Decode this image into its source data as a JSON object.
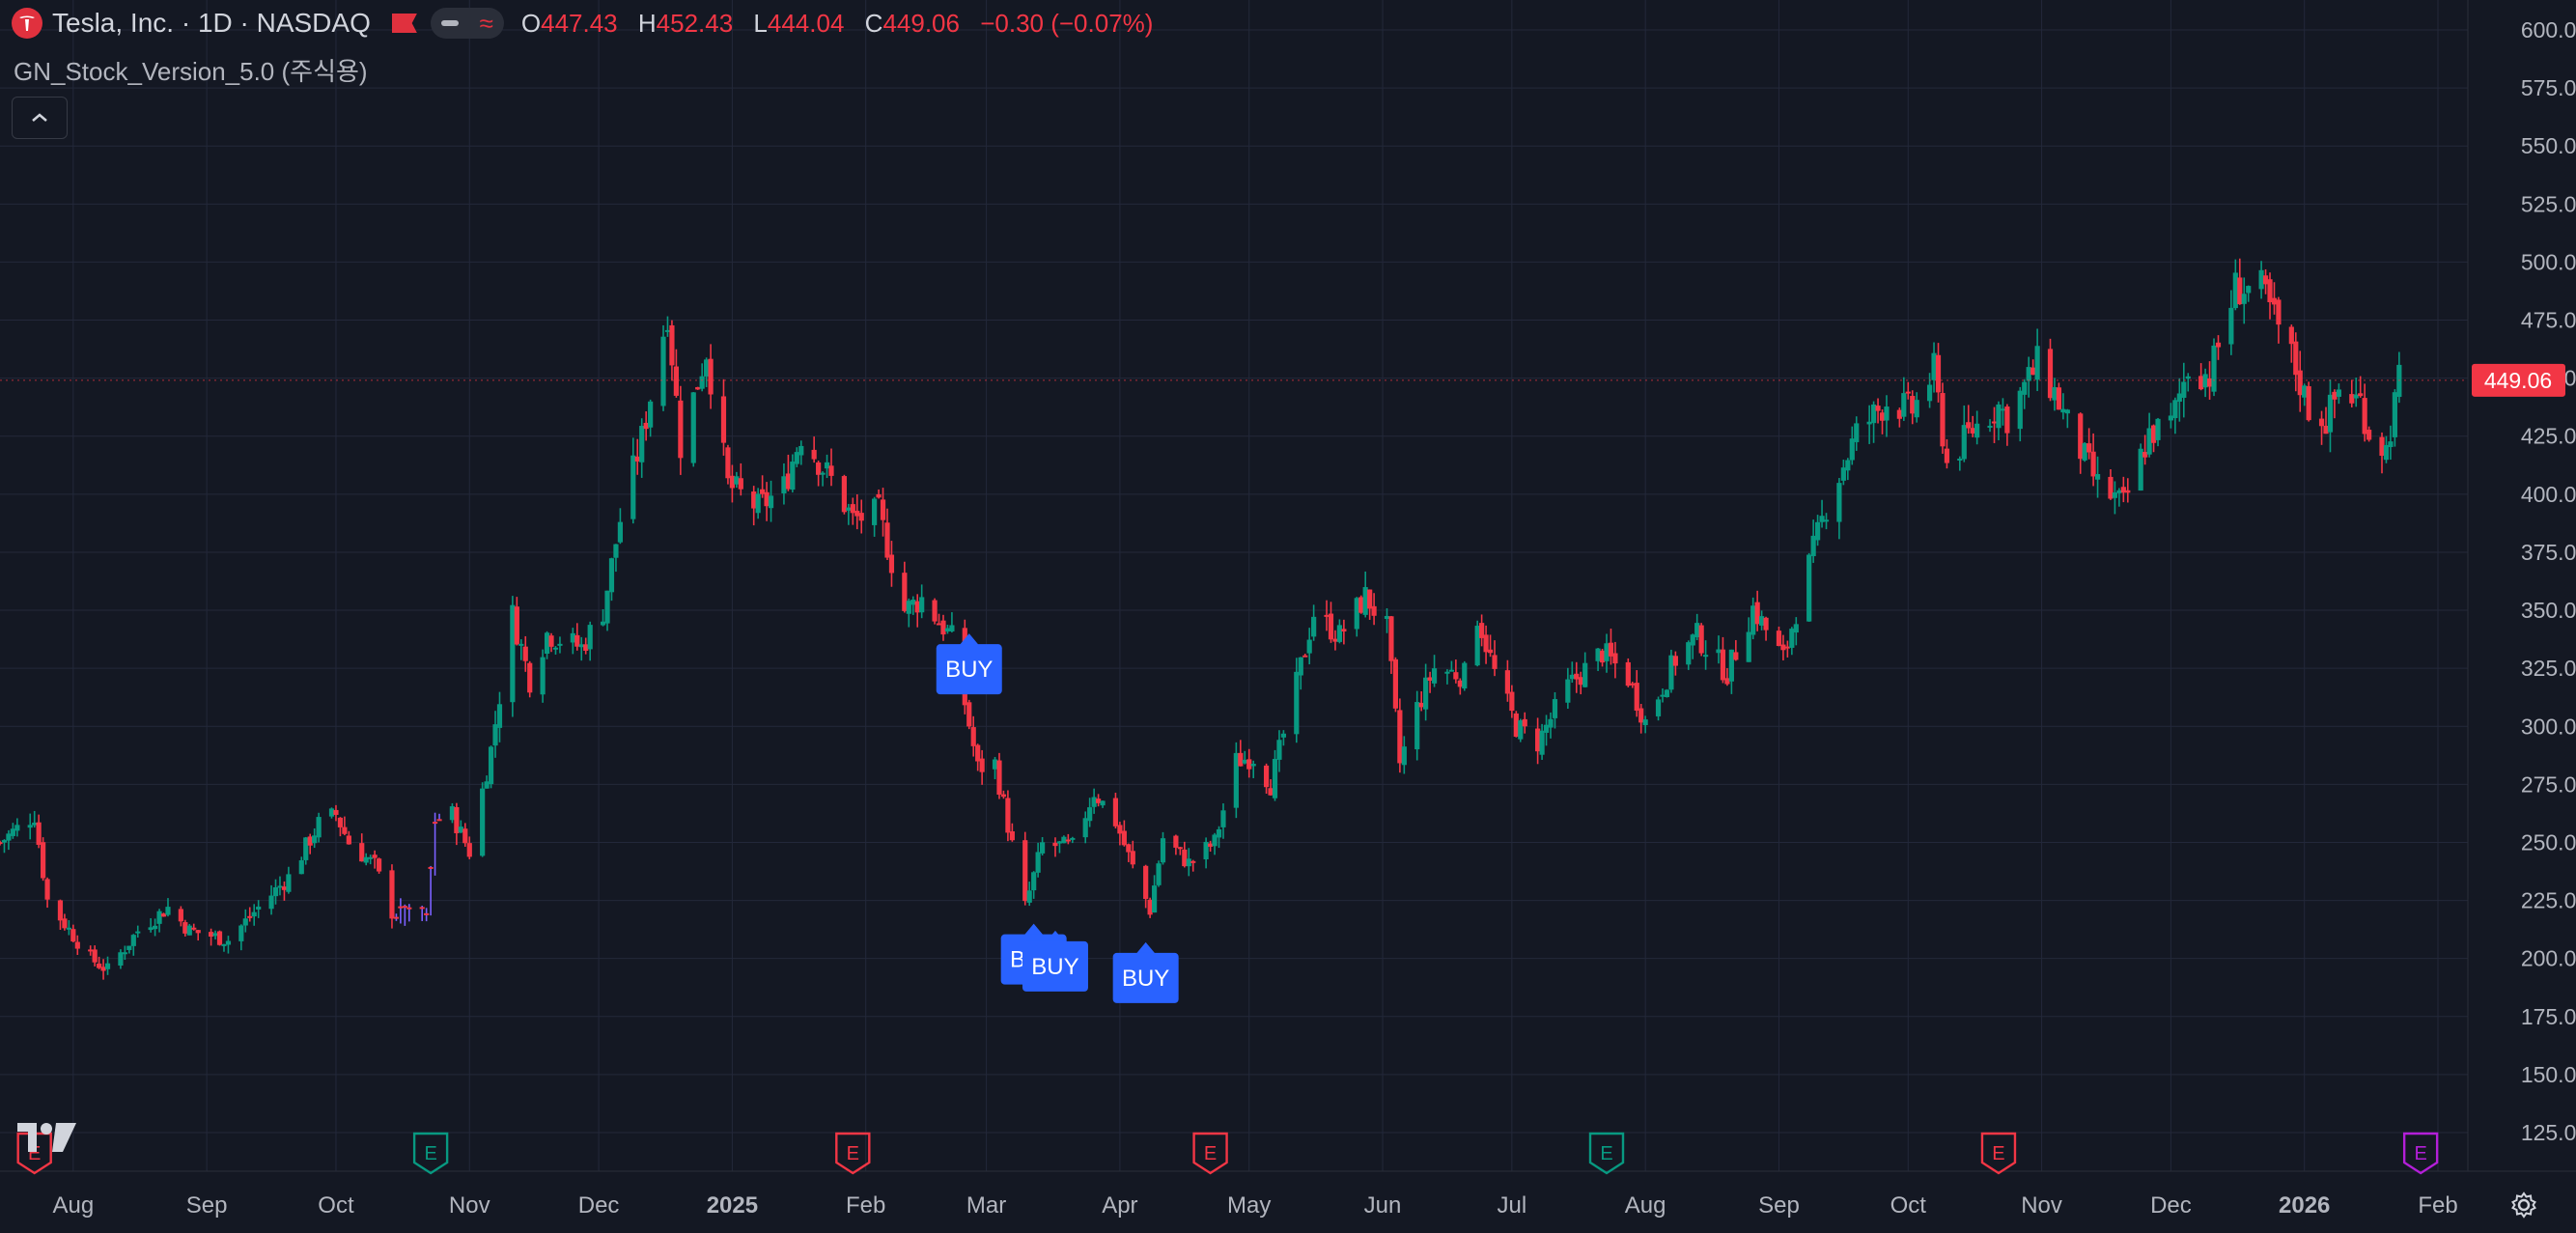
{
  "header": {
    "symbol_title": "Tesla, Inc. · 1D · NASDAQ",
    "ohlc": {
      "o_label": "O",
      "o_value": "447.43",
      "h_label": "H",
      "h_value": "452.43",
      "l_label": "L",
      "l_value": "444.04",
      "c_label": "C",
      "c_value": "449.06",
      "change": "−0.30 (−0.07%)"
    },
    "indicator_name": "GN_Stock_Version_5.0 (주식용)"
  },
  "icons": {
    "logo": "tesla-logo-icon",
    "flag": "flag-icon",
    "collapse": "chevron-up-icon",
    "settings": "gear-icon",
    "brand": "tradingview-logo-icon"
  },
  "colors": {
    "background": "#141823",
    "up": "#089981",
    "down": "#f23645",
    "grid": "#23283a",
    "buy_label": "#2962ff",
    "earnings_red": "#f23645",
    "earnings_green": "#089981",
    "earnings_purple": "#b31fd8"
  },
  "chart_data": {
    "type": "candlestick",
    "y_axis": {
      "min": 125,
      "max": 600,
      "step": 25,
      "tick_labels": [
        "600.00",
        "575.00",
        "550.00",
        "525.00",
        "500.00",
        "475.00",
        "450.00",
        "425.00",
        "400.00",
        "375.00",
        "350.00",
        "325.00",
        "300.00",
        "275.00",
        "250.00",
        "225.00",
        "200.00",
        "175.00",
        "150.00",
        "125.00"
      ]
    },
    "x_axis": {
      "labels": [
        "Aug",
        "Sep",
        "Oct",
        "Nov",
        "Dec",
        "2025",
        "Feb",
        "Mar",
        "Apr",
        "May",
        "Jun",
        "Jul",
        "Aug",
        "Sep",
        "Oct",
        "Nov",
        "Dec",
        "2026",
        "Feb"
      ],
      "bold": [
        "2025",
        "2026"
      ],
      "dates": [
        "2024-08-01",
        "2024-09-01",
        "2024-10-01",
        "2024-11-01",
        "2024-12-01",
        "2025-01-01",
        "2025-02-01",
        "2025-03-01",
        "2025-04-01",
        "2025-05-01",
        "2025-06-01",
        "2025-07-01",
        "2025-08-01",
        "2025-09-01",
        "2025-10-01",
        "2025-11-01",
        "2025-12-01",
        "2026-01-01",
        "2026-02-01"
      ]
    },
    "last_price": "449.06",
    "series": [
      {
        "name": "TSLA",
        "path": [
          [
            "2024-07-15",
            250
          ],
          [
            "2024-07-23",
            262
          ],
          [
            "2024-07-26",
            225
          ],
          [
            "2024-08-05",
            200
          ],
          [
            "2024-08-09",
            195
          ],
          [
            "2024-08-16",
            212
          ],
          [
            "2024-08-23",
            222
          ],
          [
            "2024-08-28",
            212
          ],
          [
            "2024-09-06",
            208
          ],
          [
            "2024-09-13",
            222
          ],
          [
            "2024-09-20",
            235
          ],
          [
            "2024-09-27",
            258
          ],
          [
            "2024-10-01",
            262
          ],
          [
            "2024-10-04",
            250
          ],
          [
            "2024-10-10",
            240
          ],
          [
            "2024-10-14",
            220
          ],
          [
            "2024-10-22",
            217
          ],
          [
            "2024-10-24",
            260
          ],
          [
            "2024-10-28",
            262
          ],
          [
            "2024-11-01",
            246
          ],
          [
            "2024-11-06",
            290
          ],
          [
            "2024-11-11",
            348
          ],
          [
            "2024-11-15",
            320
          ],
          [
            "2024-11-19",
            340
          ],
          [
            "2024-11-27",
            334
          ],
          [
            "2024-12-02",
            350
          ],
          [
            "2024-12-06",
            389
          ],
          [
            "2024-12-11",
            424
          ],
          [
            "2024-12-17",
            479
          ],
          [
            "2024-12-20",
            421
          ],
          [
            "2024-12-26",
            462
          ],
          [
            "2024-12-31",
            404
          ],
          [
            "2025-01-07",
            394
          ],
          [
            "2025-01-13",
            403
          ],
          [
            "2025-01-17",
            426
          ],
          [
            "2025-01-24",
            406
          ],
          [
            "2025-01-29",
            389
          ],
          [
            "2025-02-04",
            392
          ],
          [
            "2025-02-10",
            350
          ],
          [
            "2025-02-14",
            355
          ],
          [
            "2025-02-21",
            338
          ],
          [
            "2025-02-27",
            282
          ],
          [
            "2025-03-03",
            284
          ],
          [
            "2025-03-10",
            222
          ],
          [
            "2025-03-14",
            249
          ],
          [
            "2025-03-21",
            248
          ],
          [
            "2025-03-26",
            272
          ],
          [
            "2025-03-31",
            259
          ],
          [
            "2025-04-04",
            239
          ],
          [
            "2025-04-08",
            221
          ],
          [
            "2025-04-11",
            252
          ],
          [
            "2025-04-17",
            241
          ],
          [
            "2025-04-23",
            250
          ],
          [
            "2025-04-28",
            285
          ],
          [
            "2025-05-02",
            287
          ],
          [
            "2025-05-06",
            275
          ],
          [
            "2025-05-12",
            318
          ],
          [
            "2025-05-16",
            349
          ],
          [
            "2025-05-22",
            339
          ],
          [
            "2025-05-28",
            356
          ],
          [
            "2025-06-02",
            342
          ],
          [
            "2025-06-05",
            284
          ],
          [
            "2025-06-09",
            308
          ],
          [
            "2025-06-13",
            325
          ],
          [
            "2025-06-20",
            322
          ],
          [
            "2025-06-23",
            348
          ],
          [
            "2025-06-27",
            323
          ],
          [
            "2025-07-02",
            300
          ],
          [
            "2025-07-07",
            293
          ],
          [
            "2025-07-14",
            317
          ],
          [
            "2025-07-22",
            332
          ],
          [
            "2025-07-28",
            321
          ],
          [
            "2025-08-01",
            302
          ],
          [
            "2025-08-08",
            329
          ],
          [
            "2025-08-13",
            339
          ],
          [
            "2025-08-20",
            323
          ],
          [
            "2025-08-26",
            351
          ],
          [
            "2025-09-02",
            329
          ],
          [
            "2025-09-05",
            350
          ],
          [
            "2025-09-12",
            395
          ],
          [
            "2025-09-19",
            426
          ],
          [
            "2025-09-26",
            440
          ],
          [
            "2025-10-02",
            436
          ],
          [
            "2025-10-07",
            453
          ],
          [
            "2025-10-10",
            413
          ],
          [
            "2025-10-16",
            428
          ],
          [
            "2025-10-22",
            438
          ],
          [
            "2025-10-24",
            433
          ],
          [
            "2025-10-31",
            456
          ],
          [
            "2025-11-04",
            444
          ],
          [
            "2025-11-07",
            430
          ],
          [
            "2025-11-14",
            404
          ],
          [
            "2025-11-20",
            395
          ],
          [
            "2025-11-26",
            426
          ],
          [
            "2025-12-01",
            430
          ],
          [
            "2025-12-05",
            455
          ],
          [
            "2025-12-10",
            451
          ],
          [
            "2025-12-16",
            489
          ],
          [
            "2025-12-22",
            488
          ],
          [
            "2025-12-29",
            459
          ],
          [
            "2026-01-02",
            437
          ],
          [
            "2026-01-06",
            432
          ],
          [
            "2026-01-09",
            445
          ],
          [
            "2026-01-14",
            440
          ],
          [
            "2026-01-16",
            427
          ],
          [
            "2026-01-20",
            419
          ],
          [
            "2026-01-23",
            449
          ]
        ]
      }
    ],
    "buy_signals": [
      {
        "label": "BUY",
        "date": "2025-02-25",
        "price": 325
      },
      {
        "label": "BUY",
        "date": "2025-03-12",
        "price": 200
      },
      {
        "label": "BUY",
        "date": "2025-03-17",
        "price": 197
      },
      {
        "label": "BUY",
        "date": "2025-04-07",
        "price": 192
      }
    ],
    "earnings_markers": [
      {
        "label": "E",
        "date": "2024-07-23",
        "color": "red"
      },
      {
        "label": "E",
        "date": "2024-10-23",
        "color": "green"
      },
      {
        "label": "E",
        "date": "2025-01-29",
        "color": "red"
      },
      {
        "label": "E",
        "date": "2025-04-22",
        "color": "red"
      },
      {
        "label": "E",
        "date": "2025-07-23",
        "color": "green"
      },
      {
        "label": "E",
        "date": "2025-10-22",
        "color": "red"
      },
      {
        "label": "E",
        "date": "2026-01-28",
        "color": "purple"
      }
    ]
  }
}
